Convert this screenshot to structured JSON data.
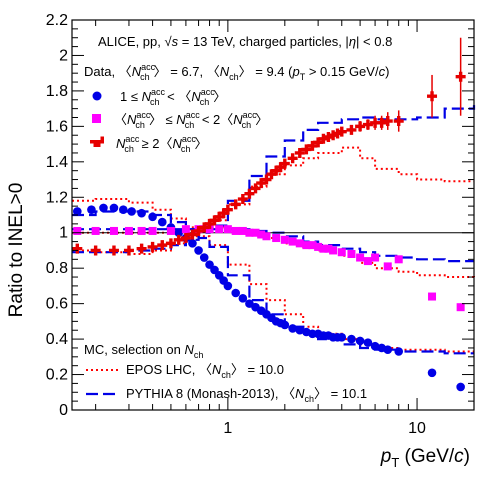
{
  "chart_data": {
    "type": "scatter",
    "xlabel": "p_T (GeV/c)",
    "ylabel": "Ratio to INEL>0",
    "x_scale": "log",
    "xlim": [
      0.15,
      20
    ],
    "ylim": [
      0,
      2.2
    ],
    "reference_line": 1,
    "x_tick_labels": [
      "1",
      "10"
    ],
    "y_tick_labels": [
      "0",
      "0.2",
      "0.4",
      "0.6",
      "0.8",
      "1",
      "1.2",
      "1.4",
      "1.6",
      "1.8",
      "2",
      "2.2"
    ],
    "header_lines": [
      "ALICE, pp, √s = 13 TeV, charged particles, |η| < 0.8",
      "Data, ⟨N_ch^acc⟩ = 6.7, ⟨N_ch⟩ = 9.4 (p_T > 0.15 GeV/c)"
    ],
    "mc_header": "MC, selection on N_ch",
    "series": [
      {
        "name": "1 ≤ N_ch^acc < ⟨N_ch^acc⟩",
        "color": "#0000e6",
        "marker": "circle",
        "x": [
          0.16,
          0.19,
          0.22,
          0.25,
          0.28,
          0.31,
          0.35,
          0.4,
          0.45,
          0.5,
          0.55,
          0.6,
          0.65,
          0.7,
          0.75,
          0.8,
          0.85,
          0.9,
          0.95,
          1.0,
          1.1,
          1.2,
          1.3,
          1.4,
          1.5,
          1.6,
          1.7,
          1.8,
          1.9,
          2.0,
          2.2,
          2.4,
          2.6,
          2.8,
          3.0,
          3.2,
          3.4,
          3.6,
          3.8,
          4.0,
          4.5,
          5.0,
          5.5,
          6.0,
          6.5,
          7.0,
          8.0,
          12.0,
          17.0
        ],
        "y": [
          1.12,
          1.13,
          1.14,
          1.14,
          1.13,
          1.12,
          1.11,
          1.09,
          1.06,
          1.03,
          1.0,
          0.97,
          0.94,
          0.9,
          0.86,
          0.82,
          0.79,
          0.76,
          0.73,
          0.7,
          0.66,
          0.63,
          0.6,
          0.58,
          0.56,
          0.54,
          0.52,
          0.5,
          0.49,
          0.48,
          0.46,
          0.45,
          0.44,
          0.43,
          0.43,
          0.42,
          0.42,
          0.41,
          0.41,
          0.41,
          0.4,
          0.39,
          0.38,
          0.36,
          0.35,
          0.34,
          0.33,
          0.21,
          0.13
        ]
      },
      {
        "name": "⟨N_ch^acc⟩ ≤ N_ch^acc < 2⟨N_ch^acc⟩",
        "color": "#ff00ff",
        "marker": "square",
        "x": [
          0.16,
          0.2,
          0.25,
          0.3,
          0.35,
          0.4,
          0.5,
          0.6,
          0.7,
          0.8,
          0.9,
          1.0,
          1.1,
          1.2,
          1.3,
          1.4,
          1.5,
          1.6,
          1.8,
          2.0,
          2.2,
          2.4,
          2.6,
          2.8,
          3.0,
          3.2,
          3.4,
          3.6,
          4.0,
          4.5,
          5.0,
          5.5,
          6.0,
          7.0,
          8.0,
          12.0,
          17.0
        ],
        "y": [
          1.01,
          1.01,
          1.01,
          1.01,
          1.01,
          1.01,
          1.01,
          1.02,
          1.02,
          1.02,
          1.02,
          1.02,
          1.01,
          1.01,
          1.0,
          1.0,
          0.99,
          0.98,
          0.97,
          0.96,
          0.95,
          0.94,
          0.93,
          0.93,
          0.92,
          0.91,
          0.91,
          0.9,
          0.89,
          0.88,
          0.86,
          0.84,
          0.86,
          0.81,
          0.85,
          0.64,
          0.58
        ]
      },
      {
        "name": "N_ch^acc ≥ 2⟨N_ch^acc⟩",
        "color": "#e60000",
        "marker": "cross",
        "x": [
          0.16,
          0.2,
          0.25,
          0.3,
          0.35,
          0.4,
          0.45,
          0.5,
          0.55,
          0.6,
          0.65,
          0.7,
          0.75,
          0.8,
          0.85,
          0.9,
          0.95,
          1.0,
          1.1,
          1.2,
          1.3,
          1.4,
          1.5,
          1.6,
          1.7,
          1.8,
          1.9,
          2.0,
          2.2,
          2.4,
          2.6,
          2.8,
          3.0,
          3.2,
          3.4,
          3.6,
          3.8,
          4.0,
          4.5,
          5.0,
          5.5,
          6.0,
          6.5,
          7.0,
          8.0,
          12.0,
          17.0
        ],
        "y": [
          0.91,
          0.9,
          0.9,
          0.9,
          0.91,
          0.92,
          0.93,
          0.94,
          0.96,
          0.97,
          0.99,
          1.01,
          1.03,
          1.05,
          1.07,
          1.09,
          1.11,
          1.13,
          1.16,
          1.19,
          1.22,
          1.25,
          1.28,
          1.3,
          1.33,
          1.35,
          1.37,
          1.39,
          1.42,
          1.45,
          1.47,
          1.49,
          1.51,
          1.53,
          1.54,
          1.55,
          1.56,
          1.57,
          1.58,
          1.6,
          1.61,
          1.62,
          1.62,
          1.63,
          1.63,
          1.77,
          1.88
        ],
        "yerr": [
          0,
          0,
          0,
          0,
          0,
          0,
          0,
          0,
          0,
          0,
          0,
          0,
          0,
          0,
          0,
          0,
          0,
          0,
          0,
          0,
          0,
          0,
          0,
          0,
          0,
          0,
          0,
          0,
          0,
          0,
          0,
          0,
          0,
          0,
          0,
          0,
          0,
          0,
          0.02,
          0.03,
          0.03,
          0.04,
          0.04,
          0.05,
          0.06,
          0.12,
          0.22
        ]
      }
    ],
    "models": [
      {
        "name": "EPOS LHC, ⟨N_ch⟩ = 10.0",
        "color": "#ff0000",
        "style": "dotted",
        "curves": [
          {
            "x": [
              0.15,
              0.2,
              0.3,
              0.4,
              0.5,
              0.6,
              0.7,
              0.8,
              1.0,
              1.3,
              1.6,
              2.0,
              2.5,
              3.0,
              4.0,
              5.0,
              6.0,
              8.0,
              10.0,
              14.0,
              20.0
            ],
            "y": [
              1.18,
              1.19,
              1.17,
              1.13,
              1.08,
              1.03,
              0.98,
              0.93,
              0.82,
              0.71,
              0.62,
              0.54,
              0.47,
              0.43,
              0.4,
              0.37,
              0.35,
              0.34,
              0.34,
              0.33,
              0.33
            ]
          },
          {
            "x": [
              0.15,
              0.2,
              0.3,
              0.4,
              0.5,
              0.6,
              0.7,
              0.8,
              1.0,
              1.3,
              1.6,
              2.0,
              2.5,
              3.0,
              4.0,
              5.0,
              6.0,
              8.0,
              10.0,
              14.0,
              20.0
            ],
            "y": [
              1.0,
              1.0,
              1.0,
              1.0,
              1.01,
              1.02,
              1.03,
              1.03,
              1.02,
              1.0,
              0.97,
              0.94,
              0.92,
              0.9,
              0.87,
              0.83,
              0.8,
              0.78,
              0.76,
              0.75,
              0.74
            ]
          },
          {
            "x": [
              0.15,
              0.2,
              0.3,
              0.4,
              0.5,
              0.6,
              0.7,
              0.8,
              1.0,
              1.3,
              1.6,
              2.0,
              2.5,
              3.0,
              4.0,
              5.0,
              6.0,
              8.0,
              10.0,
              14.0,
              20.0
            ],
            "y": [
              0.9,
              0.89,
              0.88,
              0.9,
              0.94,
              0.98,
              1.02,
              1.07,
              1.16,
              1.26,
              1.33,
              1.38,
              1.42,
              1.45,
              1.48,
              1.42,
              1.36,
              1.33,
              1.3,
              1.29,
              1.29
            ]
          }
        ]
      },
      {
        "name": "PYTHIA 8 (Monash-2013), ⟨N_ch⟩ = 10.1",
        "color": "#0000e6",
        "style": "dashed",
        "curves": [
          {
            "x": [
              0.15,
              0.2,
              0.3,
              0.4,
              0.5,
              0.6,
              0.7,
              0.8,
              1.0,
              1.3,
              1.6,
              2.0,
              2.5,
              3.0,
              4.0,
              5.0,
              6.0,
              8.0,
              10.0,
              14.0,
              20.0
            ],
            "y": [
              1.1,
              1.12,
              1.12,
              1.1,
              1.06,
              1.02,
              0.97,
              0.92,
              0.76,
              0.62,
              0.54,
              0.47,
              0.43,
              0.4,
              0.37,
              0.35,
              0.34,
              0.33,
              0.33,
              0.32,
              0.32
            ]
          },
          {
            "x": [
              0.15,
              0.2,
              0.3,
              0.4,
              0.5,
              0.6,
              0.7,
              0.8,
              1.0,
              1.3,
              1.6,
              2.0,
              2.5,
              3.0,
              4.0,
              5.0,
              6.0,
              8.0,
              10.0,
              14.0,
              20.0
            ],
            "y": [
              1.02,
              1.02,
              1.02,
              1.02,
              1.02,
              1.02,
              1.02,
              1.02,
              1.02,
              1.01,
              1.0,
              0.98,
              0.95,
              0.93,
              0.91,
              0.89,
              0.87,
              0.86,
              0.85,
              0.84,
              0.84
            ]
          },
          {
            "x": [
              0.15,
              0.2,
              0.3,
              0.4,
              0.5,
              0.6,
              0.7,
              0.8,
              1.0,
              1.3,
              1.6,
              2.0,
              2.5,
              3.0,
              4.0,
              5.0,
              6.0,
              8.0,
              10.0,
              14.0,
              20.0
            ],
            "y": [
              0.89,
              0.89,
              0.9,
              0.91,
              0.93,
              0.96,
              1.0,
              1.04,
              1.18,
              1.32,
              1.43,
              1.52,
              1.58,
              1.62,
              1.64,
              1.65,
              1.64,
              1.64,
              1.65,
              1.7,
              1.72
            ]
          }
        ]
      }
    ]
  }
}
